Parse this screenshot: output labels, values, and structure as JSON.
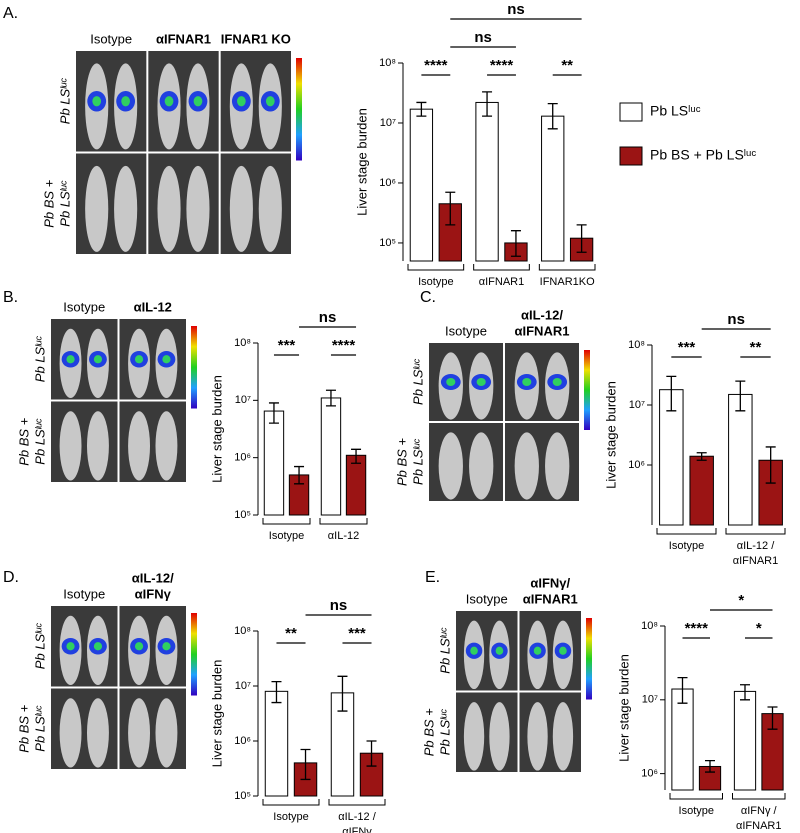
{
  "chart_data": [
    {
      "type": "bar",
      "panel": "A.",
      "ylabel": "Liver stage burden",
      "log_scale": true,
      "image_columns": [
        [
          "Isotype"
        ],
        [
          "αIFNAR1"
        ],
        [
          "IFNAR1 KO"
        ]
      ],
      "image_rows": [
        [
          "Pb LSˡᵘᶜ"
        ],
        [
          "Pb BS +",
          "Pb LSˡᵘᶜ"
        ]
      ],
      "categories": [
        [
          "Isotype"
        ],
        [
          "αIFNAR1"
        ],
        [
          "IFNAR1KO"
        ]
      ],
      "ylim": [
        50000,
        100000000
      ],
      "yticks": [
        {
          "value": 100000,
          "label": "10⁵"
        },
        {
          "value": 1000000,
          "label": "10⁶"
        },
        {
          "value": 10000000,
          "label": "10⁷"
        },
        {
          "value": 100000000,
          "label": "10⁸"
        }
      ],
      "legend": "right",
      "series": [
        {
          "name": "Pb LSˡᵘᶜ",
          "color": "#ffffff",
          "values": [
            17000000,
            22000000,
            13000000
          ],
          "ci": [
            [
              13000000,
              22000000
            ],
            [
              13000000,
              33000000
            ],
            [
              8000000,
              21000000
            ]
          ]
        },
        {
          "name": "Pb BS + Pb LSˡᵘᶜ",
          "color": "#9b1414",
          "values": [
            450000,
            100000,
            120000
          ],
          "ci": [
            [
              200000,
              700000
            ],
            [
              60000,
              160000
            ],
            [
              70000,
              200000
            ]
          ]
        }
      ],
      "comparisons": [
        {
          "label": "****",
          "from": [
            0,
            0
          ],
          "to": [
            0,
            1
          ]
        },
        {
          "label": "****",
          "from": [
            1,
            0
          ],
          "to": [
            1,
            1
          ]
        },
        {
          "label": "**",
          "from": [
            2,
            0
          ],
          "to": [
            2,
            1
          ]
        },
        {
          "label": "ns",
          "from": [
            0,
            1
          ],
          "to": [
            1,
            1
          ]
        },
        {
          "label": "ns",
          "from": [
            0,
            1
          ],
          "to": [
            2,
            1
          ]
        }
      ]
    },
    {
      "type": "bar",
      "panel": "B.",
      "ylabel": "Liver stage burden",
      "log_scale": true,
      "image_columns": [
        [
          "Isotype"
        ],
        [
          "αIL-12"
        ]
      ],
      "image_rows": [
        [
          "Pb LSˡᵘᶜ"
        ],
        [
          "Pb BS +",
          "Pb LSˡᵘᶜ"
        ]
      ],
      "categories": [
        [
          "Isotype"
        ],
        [
          "αIL-12"
        ]
      ],
      "ylim": [
        100000,
        100000000
      ],
      "yticks": [
        {
          "value": 100000,
          "label": "10⁵"
        },
        {
          "value": 1000000,
          "label": "10⁶"
        },
        {
          "value": 10000000,
          "label": "10⁷"
        },
        {
          "value": 100000000,
          "label": "10⁸"
        }
      ],
      "series": [
        {
          "name": "Pb LSˡᵘᶜ",
          "color": "#ffffff",
          "values": [
            6500000,
            11000000
          ],
          "ci": [
            [
              4000000,
              9000000
            ],
            [
              8000000,
              15000000
            ]
          ]
        },
        {
          "name": "Pb BS + Pb LSˡᵘᶜ",
          "color": "#9b1414",
          "values": [
            500000,
            1100000
          ],
          "ci": [
            [
              350000,
              700000
            ],
            [
              800000,
              1400000
            ]
          ]
        }
      ],
      "comparisons": [
        {
          "label": "***",
          "from": [
            0,
            0
          ],
          "to": [
            0,
            1
          ]
        },
        {
          "label": "****",
          "from": [
            1,
            0
          ],
          "to": [
            1,
            1
          ]
        },
        {
          "label": "ns",
          "from": [
            0,
            1
          ],
          "to": [
            1,
            1
          ]
        }
      ]
    },
    {
      "type": "bar",
      "panel": "C.",
      "ylabel": "Liver stage burden",
      "log_scale": true,
      "image_columns": [
        [
          "Isotype"
        ],
        [
          "αIL-12/",
          "αIFNAR1"
        ]
      ],
      "image_rows": [
        [
          "Pb LSˡᵘᶜ"
        ],
        [
          "Pb BS +",
          "Pb LSˡᵘᶜ"
        ]
      ],
      "categories": [
        [
          "Isotype"
        ],
        [
          "αIL-12 /",
          "αIFNAR1"
        ]
      ],
      "ylim": [
        100000,
        100000000
      ],
      "yticks": [
        {
          "value": 1000000,
          "label": "10⁶"
        },
        {
          "value": 10000000,
          "label": "10⁷"
        },
        {
          "value": 100000000,
          "label": "10⁸"
        }
      ],
      "series": [
        {
          "name": "Pb LSˡᵘᶜ",
          "color": "#ffffff",
          "values": [
            18000000,
            15000000
          ],
          "ci": [
            [
              8000000,
              30000000
            ],
            [
              8000000,
              25000000
            ]
          ]
        },
        {
          "name": "Pb BS + Pb LSˡᵘᶜ",
          "color": "#9b1414",
          "values": [
            1400000,
            1200000
          ],
          "ci": [
            [
              1200000,
              1600000
            ],
            [
              500000,
              2000000
            ]
          ]
        }
      ],
      "comparisons": [
        {
          "label": "***",
          "from": [
            0,
            0
          ],
          "to": [
            0,
            1
          ]
        },
        {
          "label": "**",
          "from": [
            1,
            0
          ],
          "to": [
            1,
            1
          ]
        },
        {
          "label": "ns",
          "from": [
            0,
            1
          ],
          "to": [
            1,
            1
          ]
        }
      ]
    },
    {
      "type": "bar",
      "panel": "D.",
      "ylabel": "Liver stage burden",
      "log_scale": true,
      "image_columns": [
        [
          "Isotype"
        ],
        [
          "αIL-12/",
          "αIFNγ"
        ]
      ],
      "image_rows": [
        [
          "Pb LSˡᵘᶜ"
        ],
        [
          "Pb BS +",
          "Pb LSˡᵘᶜ"
        ]
      ],
      "categories": [
        [
          "Isotype"
        ],
        [
          "αIL-12 /",
          "αIFNγ"
        ]
      ],
      "ylim": [
        100000,
        100000000
      ],
      "yticks": [
        {
          "value": 100000,
          "label": "10⁵"
        },
        {
          "value": 1000000,
          "label": "10⁶"
        },
        {
          "value": 10000000,
          "label": "10⁷"
        },
        {
          "value": 100000000,
          "label": "10⁸"
        }
      ],
      "series": [
        {
          "name": "Pb LSˡᵘᶜ",
          "color": "#ffffff",
          "values": [
            8000000,
            7500000
          ],
          "ci": [
            [
              5000000,
              12000000
            ],
            [
              3500000,
              15000000
            ]
          ]
        },
        {
          "name": "Pb BS + Pb LSˡᵘᶜ",
          "color": "#9b1414",
          "values": [
            400000,
            600000
          ],
          "ci": [
            [
              200000,
              700000
            ],
            [
              350000,
              1000000
            ]
          ]
        }
      ],
      "comparisons": [
        {
          "label": "**",
          "from": [
            0,
            0
          ],
          "to": [
            0,
            1
          ]
        },
        {
          "label": "***",
          "from": [
            1,
            0
          ],
          "to": [
            1,
            1
          ]
        },
        {
          "label": "ns",
          "from": [
            0,
            1
          ],
          "to": [
            1,
            1
          ]
        }
      ]
    },
    {
      "type": "bar",
      "panel": "E.",
      "ylabel": "Liver stage burden",
      "log_scale": true,
      "image_columns": [
        [
          "Isotype"
        ],
        [
          "αIFNγ/",
          "αIFNAR1"
        ]
      ],
      "image_rows": [
        [
          "Pb LSˡᵘᶜ"
        ],
        [
          "Pb BS +",
          "Pb LSˡᵘᶜ"
        ]
      ],
      "categories": [
        [
          "Isotype"
        ],
        [
          "αIFNγ /",
          "αIFNAR1"
        ]
      ],
      "ylim": [
        600000,
        100000000
      ],
      "yticks": [
        {
          "value": 1000000,
          "label": "10⁶"
        },
        {
          "value": 10000000,
          "label": "10⁷"
        },
        {
          "value": 100000000,
          "label": "10⁸"
        }
      ],
      "series": [
        {
          "name": "Pb LSˡᵘᶜ",
          "color": "#ffffff",
          "values": [
            14000000,
            13000000
          ],
          "ci": [
            [
              9000000,
              20000000
            ],
            [
              10000000,
              16000000
            ]
          ]
        },
        {
          "name": "Pb BS + Pb LSˡᵘᶜ",
          "color": "#9b1414",
          "values": [
            1250000,
            6500000
          ],
          "ci": [
            [
              1050000,
              1500000
            ],
            [
              4000000,
              8000000
            ]
          ]
        }
      ],
      "comparisons": [
        {
          "label": "****",
          "from": [
            0,
            0
          ],
          "to": [
            0,
            1
          ]
        },
        {
          "label": "*",
          "from": [
            1,
            0
          ],
          "to": [
            1,
            1
          ]
        },
        {
          "label": "*",
          "from": [
            0,
            1
          ],
          "to": [
            1,
            1
          ]
        }
      ]
    }
  ]
}
